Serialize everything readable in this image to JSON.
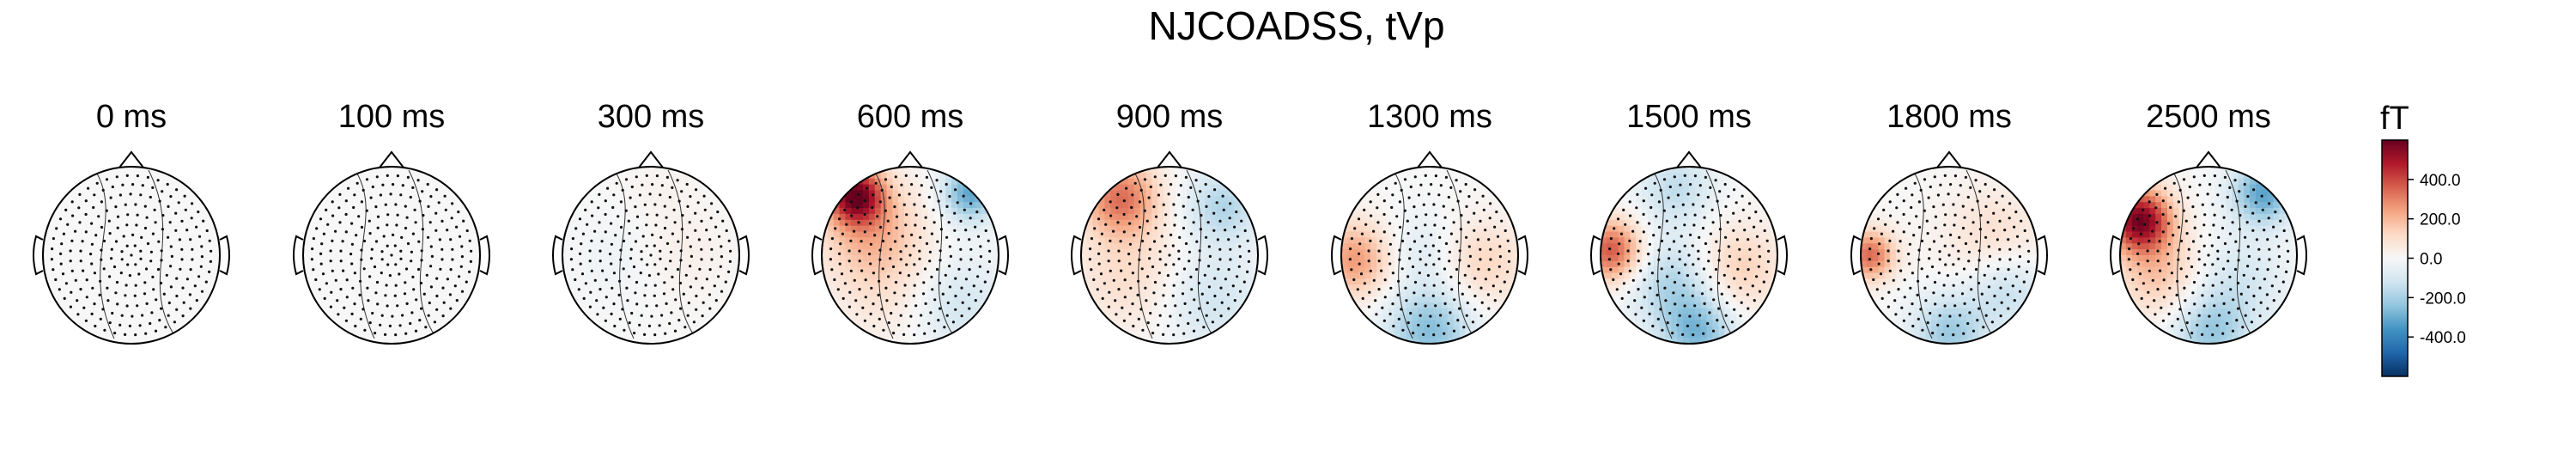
{
  "chart_data": {
    "type": "heatmap",
    "subtype": "topomap",
    "title": "NJCOADSS, tVp",
    "panels": [
      {
        "label": "0 ms",
        "time_ms": 0,
        "scale": 0.08,
        "blobs": []
      },
      {
        "label": "100 ms",
        "time_ms": 100,
        "scale": 0.08,
        "blobs": []
      },
      {
        "label": "300 ms",
        "time_ms": 300,
        "scale": 0.25,
        "blobs": [
          {
            "x": 0.35,
            "y": 0.0,
            "s": 0.35,
            "a": 140
          },
          {
            "x": -0.35,
            "y": 0.05,
            "s": 0.35,
            "a": -110
          },
          {
            "x": 0.1,
            "y": -0.75,
            "s": 0.3,
            "a": 70
          }
        ]
      },
      {
        "label": "600 ms",
        "time_ms": 600,
        "scale": 1,
        "blobs": [
          {
            "x": -0.62,
            "y": -0.68,
            "s": 0.22,
            "a": 520
          },
          {
            "x": -0.45,
            "y": -0.3,
            "s": 0.4,
            "a": 200
          },
          {
            "x": 0.68,
            "y": -0.7,
            "s": 0.22,
            "a": -320
          },
          {
            "x": 0.5,
            "y": 0.55,
            "s": 0.4,
            "a": -120
          },
          {
            "x": -0.2,
            "y": 0.4,
            "s": 0.45,
            "a": 80
          }
        ]
      },
      {
        "label": "900 ms",
        "time_ms": 900,
        "scale": 1,
        "blobs": [
          {
            "x": -0.55,
            "y": -0.65,
            "s": 0.3,
            "a": 320
          },
          {
            "x": -0.45,
            "y": 0.2,
            "s": 0.45,
            "a": 110
          },
          {
            "x": 0.6,
            "y": -0.55,
            "s": 0.3,
            "a": -180
          },
          {
            "x": 0.45,
            "y": 0.5,
            "s": 0.4,
            "a": -120
          }
        ]
      },
      {
        "label": "1300 ms",
        "time_ms": 1300,
        "scale": 1,
        "blobs": [
          {
            "x": -0.85,
            "y": 0.05,
            "s": 0.3,
            "a": 260
          },
          {
            "x": 0.6,
            "y": 0.1,
            "s": 0.35,
            "a": 130
          },
          {
            "x": 0.0,
            "y": 0.85,
            "s": 0.35,
            "a": -260
          },
          {
            "x": -0.1,
            "y": -0.05,
            "s": 0.3,
            "a": -80
          }
        ]
      },
      {
        "label": "1500 ms",
        "time_ms": 1500,
        "scale": 1,
        "blobs": [
          {
            "x": -0.88,
            "y": -0.05,
            "s": 0.25,
            "a": 380
          },
          {
            "x": 0.55,
            "y": 0.15,
            "s": 0.35,
            "a": 150
          },
          {
            "x": -0.15,
            "y": -0.75,
            "s": 0.3,
            "a": -150
          },
          {
            "x": -0.2,
            "y": 0.3,
            "s": 0.35,
            "a": -180
          },
          {
            "x": 0.1,
            "y": 0.88,
            "s": 0.3,
            "a": -260
          }
        ]
      },
      {
        "label": "1800 ms",
        "time_ms": 1800,
        "scale": 1,
        "blobs": [
          {
            "x": -0.9,
            "y": 0.0,
            "s": 0.2,
            "a": 340
          },
          {
            "x": 0.5,
            "y": -0.2,
            "s": 0.4,
            "a": 100
          },
          {
            "x": 0.65,
            "y": 0.4,
            "s": 0.3,
            "a": -150
          },
          {
            "x": 0.0,
            "y": 0.88,
            "s": 0.3,
            "a": -220
          }
        ]
      },
      {
        "label": "2500 ms",
        "time_ms": 2500,
        "scale": 1,
        "blobs": [
          {
            "x": -0.78,
            "y": -0.4,
            "s": 0.25,
            "a": 560
          },
          {
            "x": -0.55,
            "y": 0.2,
            "s": 0.35,
            "a": 180
          },
          {
            "x": 0.62,
            "y": -0.7,
            "s": 0.25,
            "a": -320
          },
          {
            "x": 0.3,
            "y": 0.35,
            "s": 0.4,
            "a": -120
          },
          {
            "x": 0.0,
            "y": 0.9,
            "s": 0.3,
            "a": -200
          }
        ]
      }
    ],
    "colorbar": {
      "unit": "fT",
      "vmin": -600,
      "vmax": 600,
      "ticks": [
        400.0,
        200.0,
        0.0,
        -200.0,
        -400.0
      ],
      "tick_labels": [
        "400.0",
        "200.0",
        "0.0",
        "-200.0",
        "-400.0"
      ],
      "colormap": "RdBu_r"
    },
    "colors": {
      "negative": "#053061",
      "neutral": "#f7f7f7",
      "positive": "#67001f"
    }
  }
}
